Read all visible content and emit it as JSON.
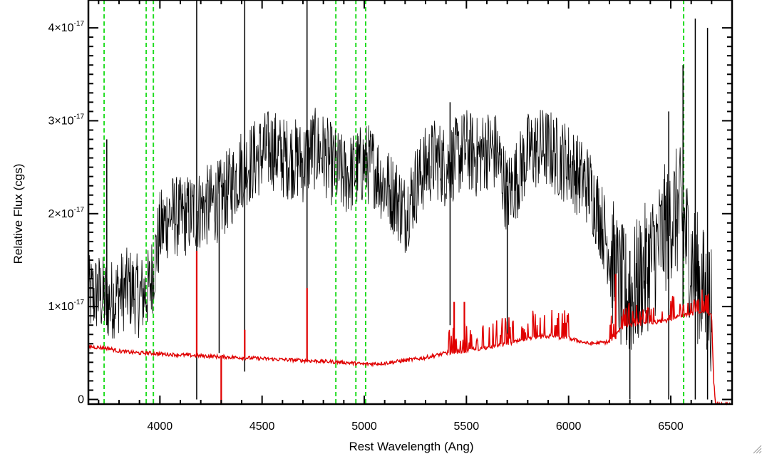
{
  "chart_data": {
    "type": "line",
    "xlabel": "Rest Wavelength (Ang)",
    "ylabel": "Relative Flux (cgs)",
    "xlim": [
      3650,
      6800
    ],
    "ylim": [
      -5e-19,
      4.3e-17
    ],
    "x_ticks": [
      {
        "value": 4000,
        "label": "4000"
      },
      {
        "value": 4500,
        "label": "4500"
      },
      {
        "value": 5000,
        "label": "5000"
      },
      {
        "value": 5500,
        "label": "5500"
      },
      {
        "value": 6000,
        "label": "6000"
      },
      {
        "value": 6500,
        "label": "6500"
      }
    ],
    "y_ticks": [
      {
        "value": 0,
        "mantissa": "0",
        "exponent": ""
      },
      {
        "value": 1e-17,
        "mantissa": "1×10",
        "exponent": "-17"
      },
      {
        "value": 2e-17,
        "mantissa": "2×10",
        "exponent": "-17"
      },
      {
        "value": 3e-17,
        "mantissa": "3×10",
        "exponent": "-17"
      },
      {
        "value": 4e-17,
        "mantissa": "4×10",
        "exponent": "-17"
      }
    ],
    "grid": false,
    "series": [
      {
        "color": "#000000",
        "x": [
          3650,
          3700,
          3750,
          3800,
          3850,
          3900,
          3950,
          4000,
          4050,
          4100,
          4150,
          4200,
          4250,
          4300,
          4350,
          4400,
          4450,
          4500,
          4550,
          4600,
          4650,
          4700,
          4750,
          4800,
          4850,
          4900,
          4950,
          5000,
          5050,
          5100,
          5150,
          5200,
          5250,
          5300,
          5350,
          5400,
          5450,
          5500,
          5550,
          5600,
          5650,
          5700,
          5750,
          5800,
          5850,
          5900,
          5950,
          6000,
          6050,
          6100,
          6150,
          6200,
          6250,
          6300,
          6350,
          6400,
          6450,
          6500,
          6550,
          6600,
          6650,
          6700
        ],
        "y": [
          1.1e-17,
          1.15e-17,
          1.05e-17,
          1.15e-17,
          1.2e-17,
          1.1e-17,
          1.2e-17,
          1.8e-17,
          2e-17,
          1.95e-17,
          2e-17,
          2.05e-17,
          2.1e-17,
          2.15e-17,
          2.3e-17,
          2.5e-17,
          2.55e-17,
          2.65e-17,
          2.7e-17,
          2.6e-17,
          2.6e-17,
          2.55e-17,
          2.7e-17,
          2.65e-17,
          2.5e-17,
          2.4e-17,
          2.45e-17,
          2.55e-17,
          2.5e-17,
          2.3e-17,
          2.2e-17,
          2e-17,
          2.3e-17,
          2.5e-17,
          2.6e-17,
          2.5e-17,
          2.6e-17,
          2.7e-17,
          2.6e-17,
          2.7e-17,
          2.65e-17,
          2.2e-17,
          2.4e-17,
          2.65e-17,
          2.7e-17,
          2.7e-17,
          2.6e-17,
          2.55e-17,
          2.4e-17,
          2.3e-17,
          2e-17,
          1.6e-17,
          1.2e-17,
          1.1e-17,
          1.3e-17,
          1.5e-17,
          1.7e-17,
          2e-17,
          2e-17,
          1.5e-17,
          1.2e-17,
          1e-17
        ],
        "spikes": [
          {
            "x": 4180,
            "ymin": 0,
            "ymax": 4.3e-17
          },
          {
            "x": 4290,
            "ymin": 5e-18,
            "ymax": 2.5e-17
          },
          {
            "x": 4415,
            "ymin": 3e-18,
            "ymax": 4.3e-17
          },
          {
            "x": 4720,
            "ymin": 6e-18,
            "ymax": 4.3e-17
          },
          {
            "x": 5420,
            "ymin": 8e-18,
            "ymax": 3.2e-17
          },
          {
            "x": 5700,
            "ymin": 7e-18,
            "ymax": 2.3e-17
          },
          {
            "x": 6300,
            "ymin": 0,
            "ymax": 1.6e-17
          },
          {
            "x": 6490,
            "ymin": 0,
            "ymax": 3.1e-17
          },
          {
            "x": 6560,
            "ymin": 1e-17,
            "ymax": 3.6e-17
          },
          {
            "x": 6620,
            "ymin": 0,
            "ymax": 4.1e-17
          },
          {
            "x": 6680,
            "ymin": 0,
            "ymax": 4e-17
          },
          {
            "x": 3740,
            "ymin": 8e-18,
            "ymax": 2.8e-17
          }
        ]
      },
      {
        "color": "#e00000",
        "x": [
          3650,
          3700,
          3750,
          3800,
          3850,
          3900,
          3950,
          4000,
          4100,
          4200,
          4300,
          4400,
          4500,
          4600,
          4700,
          4800,
          4900,
          5000,
          5100,
          5200,
          5300,
          5400,
          5500,
          5600,
          5700,
          5800,
          5900,
          6000,
          6100,
          6200,
          6250,
          6300,
          6400,
          6500,
          6550,
          6600,
          6650,
          6700,
          6710,
          6720,
          6800
        ],
        "y": [
          5.7e-18,
          5.6e-18,
          5.5e-18,
          5.2e-18,
          5.1e-18,
          5e-18,
          5e-18,
          4.9e-18,
          4.8e-18,
          4.7e-18,
          4.6e-18,
          4.5e-18,
          4.4e-18,
          4.3e-18,
          4.2e-18,
          4.1e-18,
          4e-18,
          3.8e-18,
          3.9e-18,
          4.2e-18,
          4.5e-18,
          5e-18,
          5.2e-18,
          5.5e-18,
          6e-18,
          6.5e-18,
          6.8e-18,
          6.6e-18,
          6e-18,
          6.2e-18,
          7.5e-18,
          8e-18,
          8.2e-18,
          8.6e-18,
          9e-18,
          9.2e-18,
          9.5e-18,
          9e-18,
          2e-18,
          -5e-19,
          -5e-19
        ],
        "spikes": [
          {
            "x": 4180,
            "ymin": 4.7e-18,
            "ymax": 1.6e-17
          },
          {
            "x": 4300,
            "ymin": -5e-19,
            "ymax": 4.6e-18
          },
          {
            "x": 4415,
            "ymin": 4.5e-18,
            "ymax": 7.5e-18
          },
          {
            "x": 4720,
            "ymin": 4.2e-18,
            "ymax": 1.2e-17
          },
          {
            "x": 5440,
            "ymin": 5e-18,
            "ymax": 1.05e-17
          },
          {
            "x": 5490,
            "ymin": 5e-18,
            "ymax": 1.05e-17
          },
          {
            "x": 6230,
            "ymin": 6.5e-18,
            "ymax": 1.35e-17
          }
        ]
      }
    ],
    "reference_lines": {
      "color": "#22dd22",
      "style": "dashed",
      "x": [
        3727,
        3933,
        3968,
        4861,
        4959,
        5007,
        6563
      ]
    }
  }
}
